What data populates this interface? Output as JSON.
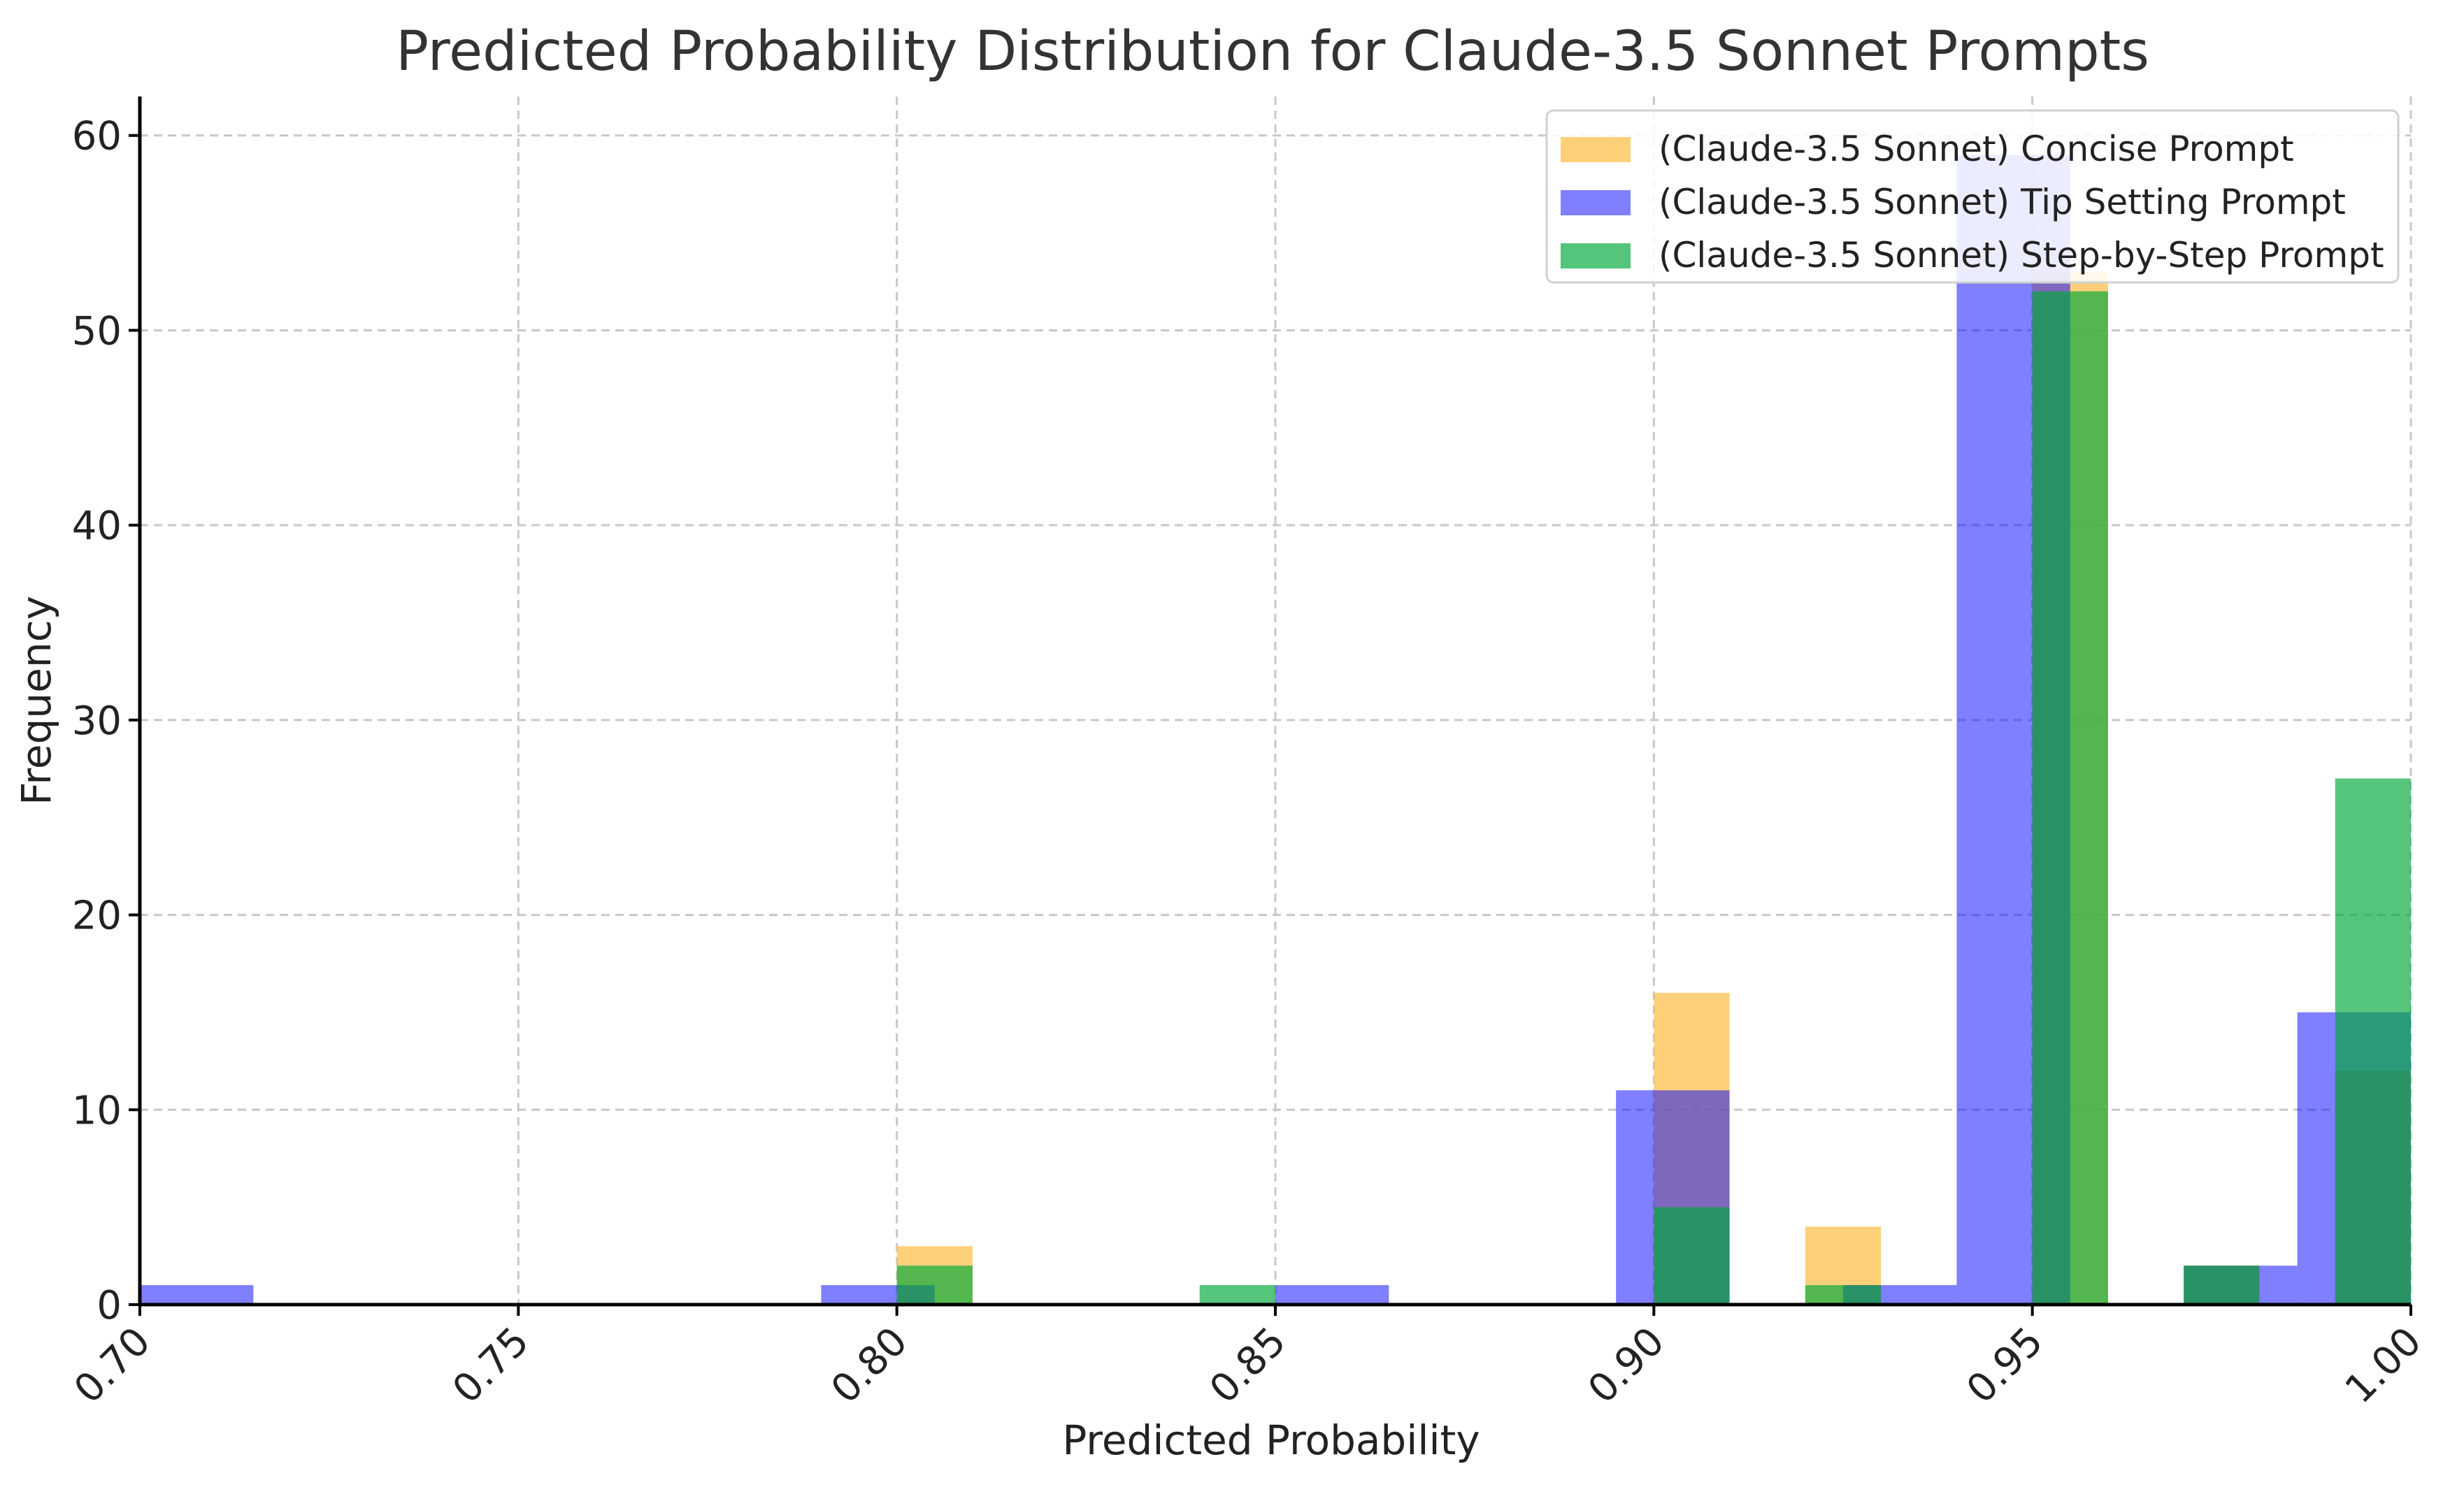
{
  "chart_data": {
    "type": "bar",
    "title": "Predicted Probability Distribution for Claude-3.5 Sonnet Prompts",
    "xlabel": "Predicted Probability",
    "ylabel": "Frequency",
    "xlim": [
      0.7,
      1.0
    ],
    "ylim": [
      0,
      62
    ],
    "xticks": [
      "0.70",
      "0.75",
      "0.80",
      "0.85",
      "0.90",
      "0.95",
      "1.00"
    ],
    "xtick_values": [
      0.7,
      0.75,
      0.8,
      0.85,
      0.9,
      0.95,
      1.0
    ],
    "yticks": [
      "0",
      "10",
      "20",
      "30",
      "40",
      "50",
      "60"
    ],
    "ytick_values": [
      0,
      10,
      20,
      30,
      40,
      50,
      60
    ],
    "grid": true,
    "legend_position": "top-right",
    "series": [
      {
        "name": "(Claude-3.5 Sonnet) Concise Prompt",
        "color": "#ffc04d",
        "opacity": 0.75,
        "bins": [
          {
            "x0": 0.8,
            "x1": 0.81,
            "value": 3
          },
          {
            "x0": 0.9,
            "x1": 0.91,
            "value": 16
          },
          {
            "x0": 0.92,
            "x1": 0.93,
            "value": 4
          },
          {
            "x0": 0.95,
            "x1": 0.96,
            "value": 53
          },
          {
            "x0": 0.97,
            "x1": 0.98,
            "value": 2
          },
          {
            "x0": 0.99,
            "x1": 1.0,
            "value": 12
          }
        ]
      },
      {
        "name": "(Claude-3.5 Sonnet) Tip Setting Prompt",
        "color": "#0000ff",
        "opacity": 0.5,
        "bins": [
          {
            "x0": 0.7,
            "x1": 0.715,
            "value": 1
          },
          {
            "x0": 0.79,
            "x1": 0.805,
            "value": 1
          },
          {
            "x0": 0.85,
            "x1": 0.865,
            "value": 1
          },
          {
            "x0": 0.895,
            "x1": 0.91,
            "value": 11
          },
          {
            "x0": 0.925,
            "x1": 0.94,
            "value": 1
          },
          {
            "x0": 0.94,
            "x1": 0.955,
            "value": 59
          },
          {
            "x0": 0.97,
            "x1": 0.985,
            "value": 2
          },
          {
            "x0": 0.985,
            "x1": 1.0,
            "value": 15
          }
        ]
      },
      {
        "name": "(Claude-3.5 Sonnet) Step-by-Step Prompt",
        "color": "#00a83a",
        "opacity": 0.67,
        "bins": [
          {
            "x0": 0.8,
            "x1": 0.81,
            "value": 2
          },
          {
            "x0": 0.84,
            "x1": 0.85,
            "value": 1
          },
          {
            "x0": 0.9,
            "x1": 0.91,
            "value": 5
          },
          {
            "x0": 0.92,
            "x1": 0.93,
            "value": 1
          },
          {
            "x0": 0.95,
            "x1": 0.96,
            "value": 52
          },
          {
            "x0": 0.97,
            "x1": 0.98,
            "value": 2
          },
          {
            "x0": 0.99,
            "x1": 1.0,
            "value": 27
          }
        ]
      }
    ]
  }
}
